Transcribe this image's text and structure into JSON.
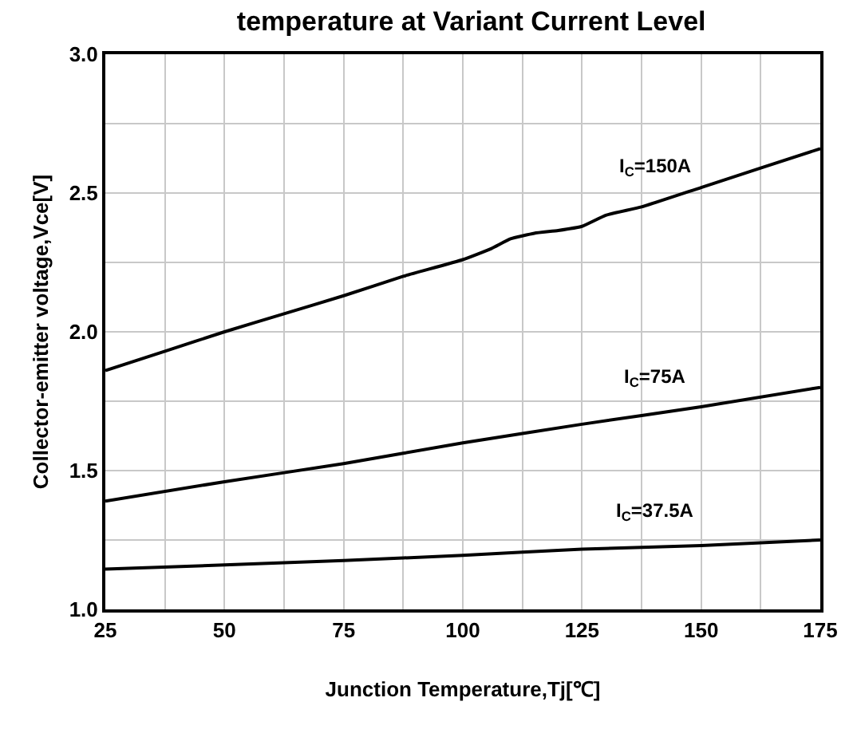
{
  "chart_data": {
    "type": "line",
    "title": "temperature at Variant Current Level",
    "xlabel": "Junction Temperature,Tj[℃]",
    "ylabel": "Collector-emitter voltage,Vce[V]",
    "series": [
      {
        "name": "I$_{C}$=150A",
        "color": "#000000",
        "x": [
          25,
          37.5,
          50,
          62.5,
          75,
          87.5,
          100,
          106,
          110,
          115,
          120,
          125,
          130,
          137.5,
          150,
          162.5,
          175
        ],
        "values": [
          1.86,
          1.93,
          2.0,
          2.065,
          2.13,
          2.2,
          2.26,
          2.3,
          2.335,
          2.355,
          2.365,
          2.38,
          2.42,
          2.45,
          2.52,
          2.59,
          2.66
        ]
      },
      {
        "name": "I$_{C}$=75A",
        "color": "#000000",
        "x": [
          25,
          50,
          75,
          100,
          125,
          150,
          175
        ],
        "values": [
          1.39,
          1.46,
          1.525,
          1.6,
          1.667,
          1.73,
          1.8
        ]
      },
      {
        "name": "I$_{C}$=37.5A",
        "color": "#000000",
        "x": [
          25,
          50,
          75,
          100,
          125,
          150,
          175
        ],
        "values": [
          1.145,
          1.16,
          1.176,
          1.195,
          1.217,
          1.23,
          1.25
        ]
      }
    ],
    "xlim": [
      25,
      175
    ],
    "xticks": [
      25,
      50,
      75,
      100,
      125,
      150,
      175
    ],
    "ylim": [
      1,
      3
    ],
    "yticks": [
      {
        "value": 1,
        "label": "1.0"
      },
      {
        "value": 1.5,
        "label": "1.5"
      },
      {
        "value": 2,
        "label": "2.0"
      },
      {
        "value": 2.5,
        "label": "2.5"
      },
      {
        "value": 3,
        "label": "3.0"
      }
    ],
    "grid": true,
    "marker": "none",
    "line_style": "solid"
  }
}
